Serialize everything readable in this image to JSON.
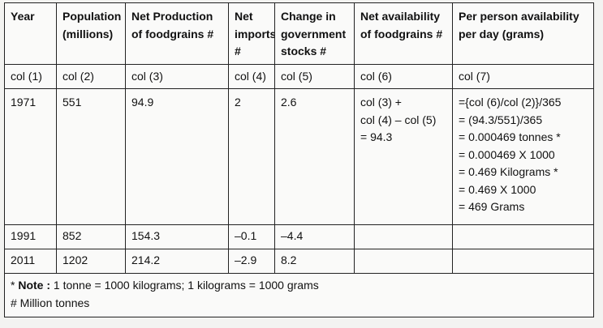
{
  "headers": [
    [
      "Year"
    ],
    [
      "Population",
      "(millions)"
    ],
    [
      "Net Production",
      "of foodgrains #"
    ],
    [
      "Net",
      "imports",
      "#"
    ],
    [
      "Change in",
      "government",
      "stocks #"
    ],
    [
      "Net availability",
      "of foodgrains #"
    ],
    [
      "Per person availability",
      "per day (grams)"
    ]
  ],
  "col_refs": [
    "col (1)",
    "col (2)",
    "col (3)",
    "col (4)",
    "col (5)",
    "col (6)",
    "col (7)"
  ],
  "rows": [
    {
      "year": "1971",
      "population": "551",
      "net_production": "94.9",
      "net_imports": "2",
      "change_in_stocks": "2.6",
      "net_availability": [
        "col (3) +",
        "col (4) – col (5)",
        "= 94.3"
      ],
      "per_person": [
        "={col (6)/col (2)}/365",
        "= (94.3/551)/365",
        "= 0.000469 tonnes *",
        "= 0.000469 X 1000",
        "= 0.469 Kilograms *",
        "= 0.469 X 1000",
        "= 469 Grams"
      ]
    },
    {
      "year": "1991",
      "population": "852",
      "net_production": "154.3",
      "net_imports": "–0.1",
      "change_in_stocks": "–4.4",
      "net_availability": [],
      "per_person": []
    },
    {
      "year": "2011",
      "population": "1202",
      "net_production": "214.2",
      "net_imports": "–2.9",
      "change_in_stocks": "8.2",
      "net_availability": [],
      "per_person": []
    }
  ],
  "notes": {
    "prefix": "* ",
    "label": "Note :",
    "text": " 1 tonne = 1000 kilograms; 1 kilograms = 1000 grams",
    "footnote": "# Million tonnes"
  }
}
